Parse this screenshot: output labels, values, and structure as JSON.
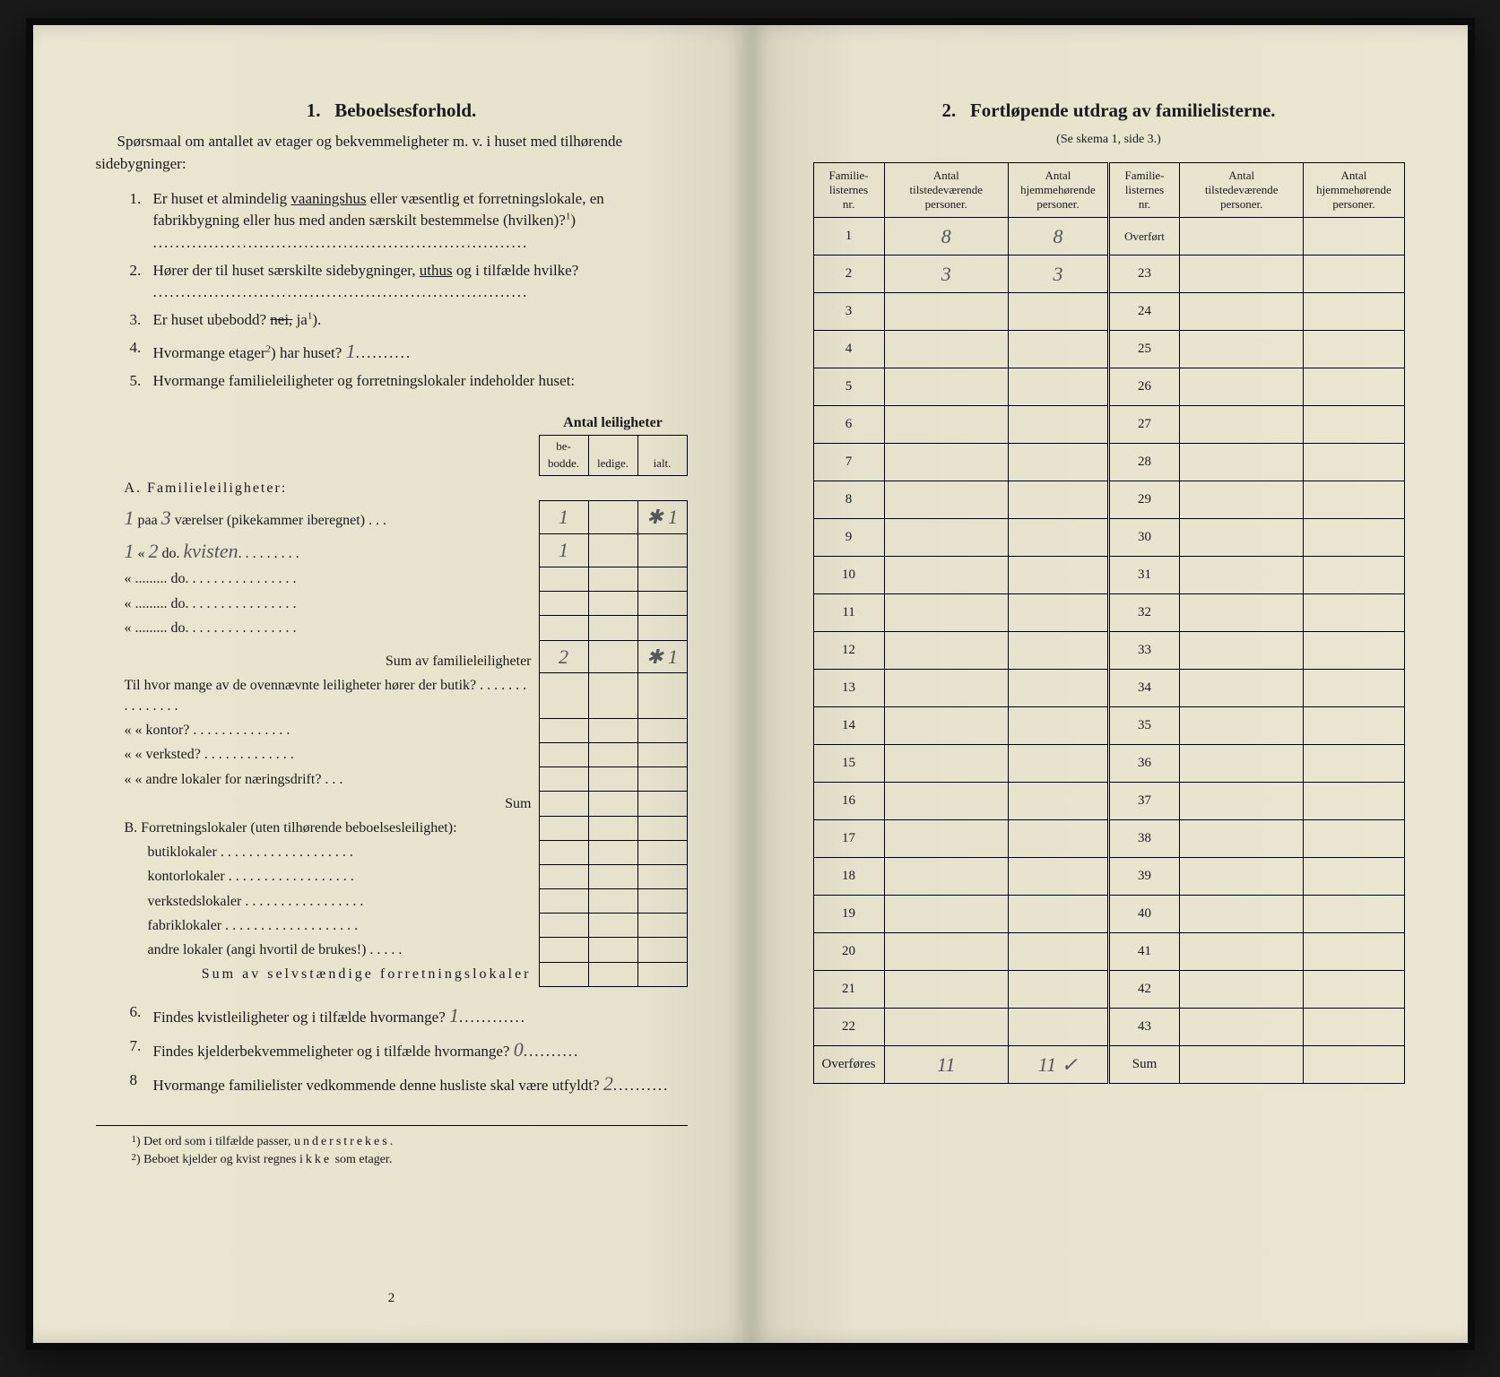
{
  "left": {
    "title_num": "1.",
    "title": "Beboelsesforhold.",
    "intro": "Spørsmaal om antallet av etager og bekvemmeligheter m. v. i huset med tilhørende sidebygninger:",
    "q1_num": "1.",
    "q1_text_a": "Er huset et almindelig ",
    "q1_text_underlined": "vaaningshus",
    "q1_text_b": " eller væsentlig et forretningslokale, en fabrikbygning eller hus med anden særskilt bestemmelse (hvilken)?",
    "q1_sup": "1",
    "q1_text_c": ")",
    "q1_dots": "...................................................................",
    "q2_num": "2.",
    "q2_text_a": "Hører der til huset særskilte sidebygninger, ",
    "q2_text_underlined": "uthus",
    "q2_text_b": " og i tilfælde hvilke?",
    "q2_dots": "...................................................................",
    "q3_num": "3.",
    "q3_text_a": "Er huset ubebodd? ",
    "q3_strike": "nei,",
    "q3_text_b": " ja",
    "q3_sup": "1",
    "q3_text_c": ").",
    "q4_num": "4.",
    "q4_text_a": "Hvormange etager",
    "q4_sup": "2",
    "q4_text_b": ") har huset?",
    "q4_hand": "1",
    "q4_dots": "..........",
    "q5_num": "5.",
    "q5_text": "Hvormange familieleiligheter og forretningslokaler indeholder huset:",
    "table_head_span": "Antal leiligheter",
    "table_head_1": "be-\nbodde.",
    "table_head_2": "ledige.",
    "table_head_3": "ialt.",
    "sectA": "A. Familieleiligheter:",
    "rowA1_hand_prefix": "1",
    "rowA1_a": " paa ",
    "rowA1_hand_mid": "3",
    "rowA1_b": " værelser (pikekammer iberegnet) . . .",
    "rowA1_c1": "1",
    "rowA1_c3": "✱ 1",
    "rowA2_hand_prefix": "1",
    "rowA2_a": " « ",
    "rowA2_hand_mid": "2",
    "rowA2_b": " do. ",
    "rowA2_hand_word": "kvisten",
    "rowA2_dots": ". . . . . . . . .",
    "rowA2_c1": "1",
    "rowA3": "« .........   do.   . . . . . . . . . . . . . . .",
    "rowA4": "« .........   do.   . . . . . . . . . . . . . . .",
    "rowA5": "« .........   do.   . . . . . . . . . . . . . . .",
    "sumA": "Sum av familieleiligheter",
    "sumA_c1": "2",
    "sumA_c3": "✱ 1",
    "midQ": "Til hvor mange av de ovennævnte leiligheter hører der butik? . . . . . . . . . . . . . . .",
    "midQ2": "«     «   kontor? . . . . . . . . . . . . . .",
    "midQ3": "«     «   verksted? . . . . . . . . . . . . .",
    "midQ4": "«     «   andre lokaler for næringsdrift? . . .",
    "sumMid": "Sum",
    "sectB": "B. Forretningslokaler (uten tilhørende beboelsesleilighet):",
    "rowB1": "butiklokaler . . . . . . . . . . . . . . . . . . .",
    "rowB2": "kontorlokaler . . . . . . . . . . . . . . . . . .",
    "rowB3": "verkstedslokaler . . . . . . . . . . . . . . . . .",
    "rowB4": "fabriklokaler . . . . . . . . . . . . . . . . . . .",
    "rowB5": "andre lokaler (angi hvortil de brukes!) . . . . .",
    "sumB": "Sum av selvstændige forretningslokaler",
    "q6_num": "6.",
    "q6_text": "Findes kvistleiligheter og i tilfælde hvormange?",
    "q6_hand": "1",
    "q6_dots": "............",
    "q7_num": "7.",
    "q7_text": "Findes kjelderbekvemmeligheter og i tilfælde hvormange?",
    "q7_hand": "0",
    "q7_dots": "..........",
    "q8_num": "8",
    "q8_text": "Hvormange familielister vedkommende denne husliste skal være utfyldt?",
    "q8_hand": "2",
    "q8_dots": "..........",
    "fn1_num": "1",
    "fn1_text": ") Det ord som i tilfælde passer, ",
    "fn1_spaced": "understrekes.",
    "fn2_num": "2",
    "fn2_text_a": ") Beboet kjelder og kvist regnes ",
    "fn2_spaced": "ikke",
    "fn2_text_b": " som etager.",
    "page_num": "2"
  },
  "right": {
    "title_num": "2.",
    "title": "Fortløpende utdrag av familielisterne.",
    "subtitle": "(Se skema 1, side 3.)",
    "head1": "Familie-\nlisternes\nnr.",
    "head2": "Antal\ntilstedeværende\npersoner.",
    "head3": "Antal\nhjemmehørende\npersoner.",
    "head4": "Familie-\nlisternes\nnr.",
    "head5": "Antal\ntilstedeværende\npersoner.",
    "head6": "Antal\nhjemmehørende\npersoner.",
    "overfort": "Overført",
    "overfores": "Overføres",
    "sum": "Sum",
    "rows": [
      {
        "n1": "1",
        "v1": "8",
        "v2": "8",
        "n2": "Overført",
        "v3": "",
        "v4": ""
      },
      {
        "n1": "2",
        "v1": "3",
        "v2": "3",
        "n2": "23",
        "v3": "",
        "v4": ""
      },
      {
        "n1": "3",
        "v1": "",
        "v2": "",
        "n2": "24",
        "v3": "",
        "v4": ""
      },
      {
        "n1": "4",
        "v1": "",
        "v2": "",
        "n2": "25",
        "v3": "",
        "v4": ""
      },
      {
        "n1": "5",
        "v1": "",
        "v2": "",
        "n2": "26",
        "v3": "",
        "v4": ""
      },
      {
        "n1": "6",
        "v1": "",
        "v2": "",
        "n2": "27",
        "v3": "",
        "v4": ""
      },
      {
        "n1": "7",
        "v1": "",
        "v2": "",
        "n2": "28",
        "v3": "",
        "v4": ""
      },
      {
        "n1": "8",
        "v1": "",
        "v2": "",
        "n2": "29",
        "v3": "",
        "v4": ""
      },
      {
        "n1": "9",
        "v1": "",
        "v2": "",
        "n2": "30",
        "v3": "",
        "v4": ""
      },
      {
        "n1": "10",
        "v1": "",
        "v2": "",
        "n2": "31",
        "v3": "",
        "v4": ""
      },
      {
        "n1": "11",
        "v1": "",
        "v2": "",
        "n2": "32",
        "v3": "",
        "v4": ""
      },
      {
        "n1": "12",
        "v1": "",
        "v2": "",
        "n2": "33",
        "v3": "",
        "v4": ""
      },
      {
        "n1": "13",
        "v1": "",
        "v2": "",
        "n2": "34",
        "v3": "",
        "v4": ""
      },
      {
        "n1": "14",
        "v1": "",
        "v2": "",
        "n2": "35",
        "v3": "",
        "v4": ""
      },
      {
        "n1": "15",
        "v1": "",
        "v2": "",
        "n2": "36",
        "v3": "",
        "v4": ""
      },
      {
        "n1": "16",
        "v1": "",
        "v2": "",
        "n2": "37",
        "v3": "",
        "v4": ""
      },
      {
        "n1": "17",
        "v1": "",
        "v2": "",
        "n2": "38",
        "v3": "",
        "v4": ""
      },
      {
        "n1": "18",
        "v1": "",
        "v2": "",
        "n2": "39",
        "v3": "",
        "v4": ""
      },
      {
        "n1": "19",
        "v1": "",
        "v2": "",
        "n2": "40",
        "v3": "",
        "v4": ""
      },
      {
        "n1": "20",
        "v1": "",
        "v2": "",
        "n2": "41",
        "v3": "",
        "v4": ""
      },
      {
        "n1": "21",
        "v1": "",
        "v2": "",
        "n2": "42",
        "v3": "",
        "v4": ""
      },
      {
        "n1": "22",
        "v1": "",
        "v2": "",
        "n2": "43",
        "v3": "",
        "v4": ""
      }
    ],
    "foot_v1": "11",
    "foot_v2": "11 ✓"
  }
}
